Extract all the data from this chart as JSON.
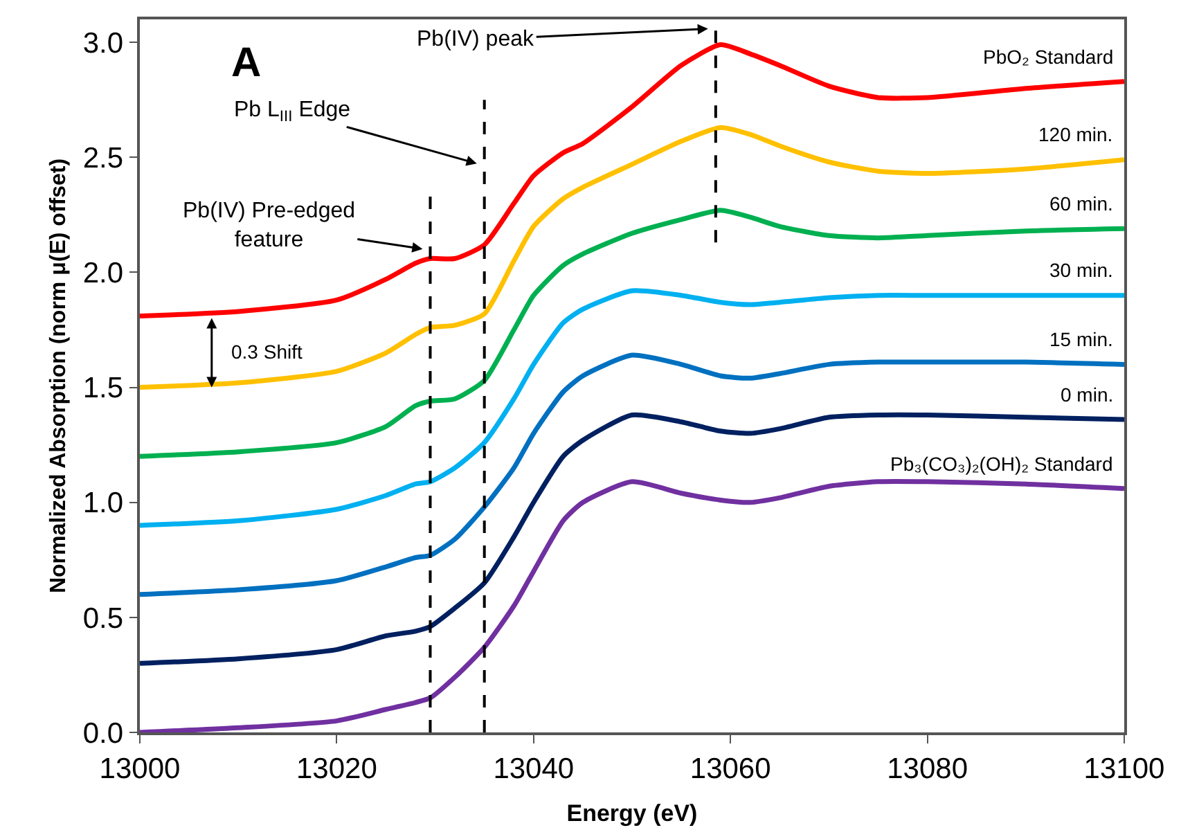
{
  "chart_data": {
    "type": "line",
    "xlabel": "Energy (eV)",
    "ylabel": "Normalized Absorption (norm μ(E) offset)",
    "xlim": [
      13000,
      13100
    ],
    "xticks": [
      13000,
      13020,
      13040,
      13060,
      13080,
      13100
    ],
    "ylim": [
      0,
      3.1
    ],
    "yticks": [
      {
        "value": 0,
        "label": "0.0"
      },
      {
        "value": 0.5,
        "label": "0.5"
      },
      {
        "value": 1,
        "label": "1.0"
      },
      {
        "value": 1.5,
        "label": "1.5"
      },
      {
        "value": 2,
        "label": "2.0"
      },
      {
        "value": 2.5,
        "label": "2.5"
      },
      {
        "value": 3,
        "label": "3.0"
      }
    ],
    "legend": false,
    "marker": "none",
    "line_style": "solid",
    "x": [
      13000,
      13010,
      13020,
      13025,
      13028,
      13029.5,
      13032,
      13035,
      13038,
      13040,
      13043,
      13045,
      13050,
      13055,
      13059,
      13062,
      13065,
      13070,
      13075,
      13080,
      13090,
      13100
    ],
    "series": [
      {
        "name": "PbO₂ Standard",
        "color": "#ff0000",
        "values": [
          1.81,
          1.83,
          1.88,
          1.97,
          2.04,
          2.06,
          2.06,
          2.12,
          2.3,
          2.42,
          2.52,
          2.56,
          2.72,
          2.9,
          2.99,
          2.95,
          2.9,
          2.81,
          2.76,
          2.76,
          2.8,
          2.83
        ]
      },
      {
        "name": "120 min.",
        "color": "#ffc000",
        "values": [
          1.5,
          1.52,
          1.57,
          1.65,
          1.73,
          1.76,
          1.77,
          1.82,
          2.05,
          2.2,
          2.32,
          2.37,
          2.47,
          2.57,
          2.63,
          2.6,
          2.55,
          2.48,
          2.44,
          2.43,
          2.45,
          2.49
        ]
      },
      {
        "name": "60 min.",
        "color": "#00b050",
        "values": [
          1.2,
          1.22,
          1.26,
          1.33,
          1.42,
          1.44,
          1.45,
          1.53,
          1.75,
          1.9,
          2.03,
          2.08,
          2.17,
          2.23,
          2.27,
          2.24,
          2.2,
          2.16,
          2.15,
          2.16,
          2.18,
          2.19
        ]
      },
      {
        "name": "30 min.",
        "color": "#00b0f0",
        "values": [
          0.9,
          0.92,
          0.97,
          1.03,
          1.08,
          1.09,
          1.15,
          1.26,
          1.45,
          1.6,
          1.78,
          1.84,
          1.92,
          1.9,
          1.87,
          1.86,
          1.87,
          1.89,
          1.9,
          1.9,
          1.9,
          1.9
        ]
      },
      {
        "name": "15 min.",
        "color": "#0070c0",
        "values": [
          0.6,
          0.62,
          0.66,
          0.72,
          0.76,
          0.77,
          0.84,
          0.98,
          1.15,
          1.3,
          1.48,
          1.55,
          1.64,
          1.6,
          1.55,
          1.54,
          1.56,
          1.6,
          1.61,
          1.61,
          1.61,
          1.6
        ]
      },
      {
        "name": "0 min.",
        "color": "#002060",
        "values": [
          0.3,
          0.32,
          0.36,
          0.42,
          0.44,
          0.46,
          0.54,
          0.65,
          0.85,
          1.0,
          1.2,
          1.27,
          1.38,
          1.35,
          1.31,
          1.3,
          1.32,
          1.37,
          1.38,
          1.38,
          1.37,
          1.36
        ]
      },
      {
        "name": "Pb₃(CO₃)₂(OH)₂ Standard",
        "color": "#7030a0",
        "values": [
          0.0,
          0.02,
          0.05,
          0.1,
          0.13,
          0.15,
          0.24,
          0.37,
          0.55,
          0.7,
          0.92,
          1.0,
          1.09,
          1.04,
          1.01,
          1.0,
          1.02,
          1.07,
          1.09,
          1.09,
          1.08,
          1.06
        ]
      },
      {
        "type": "line",
        "line_style": "dashed",
        "color": "#000000",
        "x": [
          13029.5,
          13029.5
        ],
        "values": [
          0,
          2.35
        ]
      },
      {
        "type": "line",
        "line_style": "dashed",
        "color": "#000000",
        "x": [
          13035,
          13035
        ],
        "values": [
          0,
          2.75
        ]
      },
      {
        "type": "line",
        "line_style": "dashed",
        "color": "#000000",
        "x": [
          13058.5,
          13058.5
        ],
        "values": [
          2.13,
          3.09
        ]
      }
    ],
    "annotations": [
      "A",
      {
        "text": "Pb(IV) Pre-edged\nfeature",
        "x": 13029,
        "y": 2.1
      },
      {
        "text": "Pb L$_{III}$ Edge",
        "x": 13034.5,
        "y": 2.47
      },
      {
        "text": "Pb(IV) peak",
        "x": 13058,
        "y": 3.06
      },
      "0.3 Shift"
    ]
  }
}
